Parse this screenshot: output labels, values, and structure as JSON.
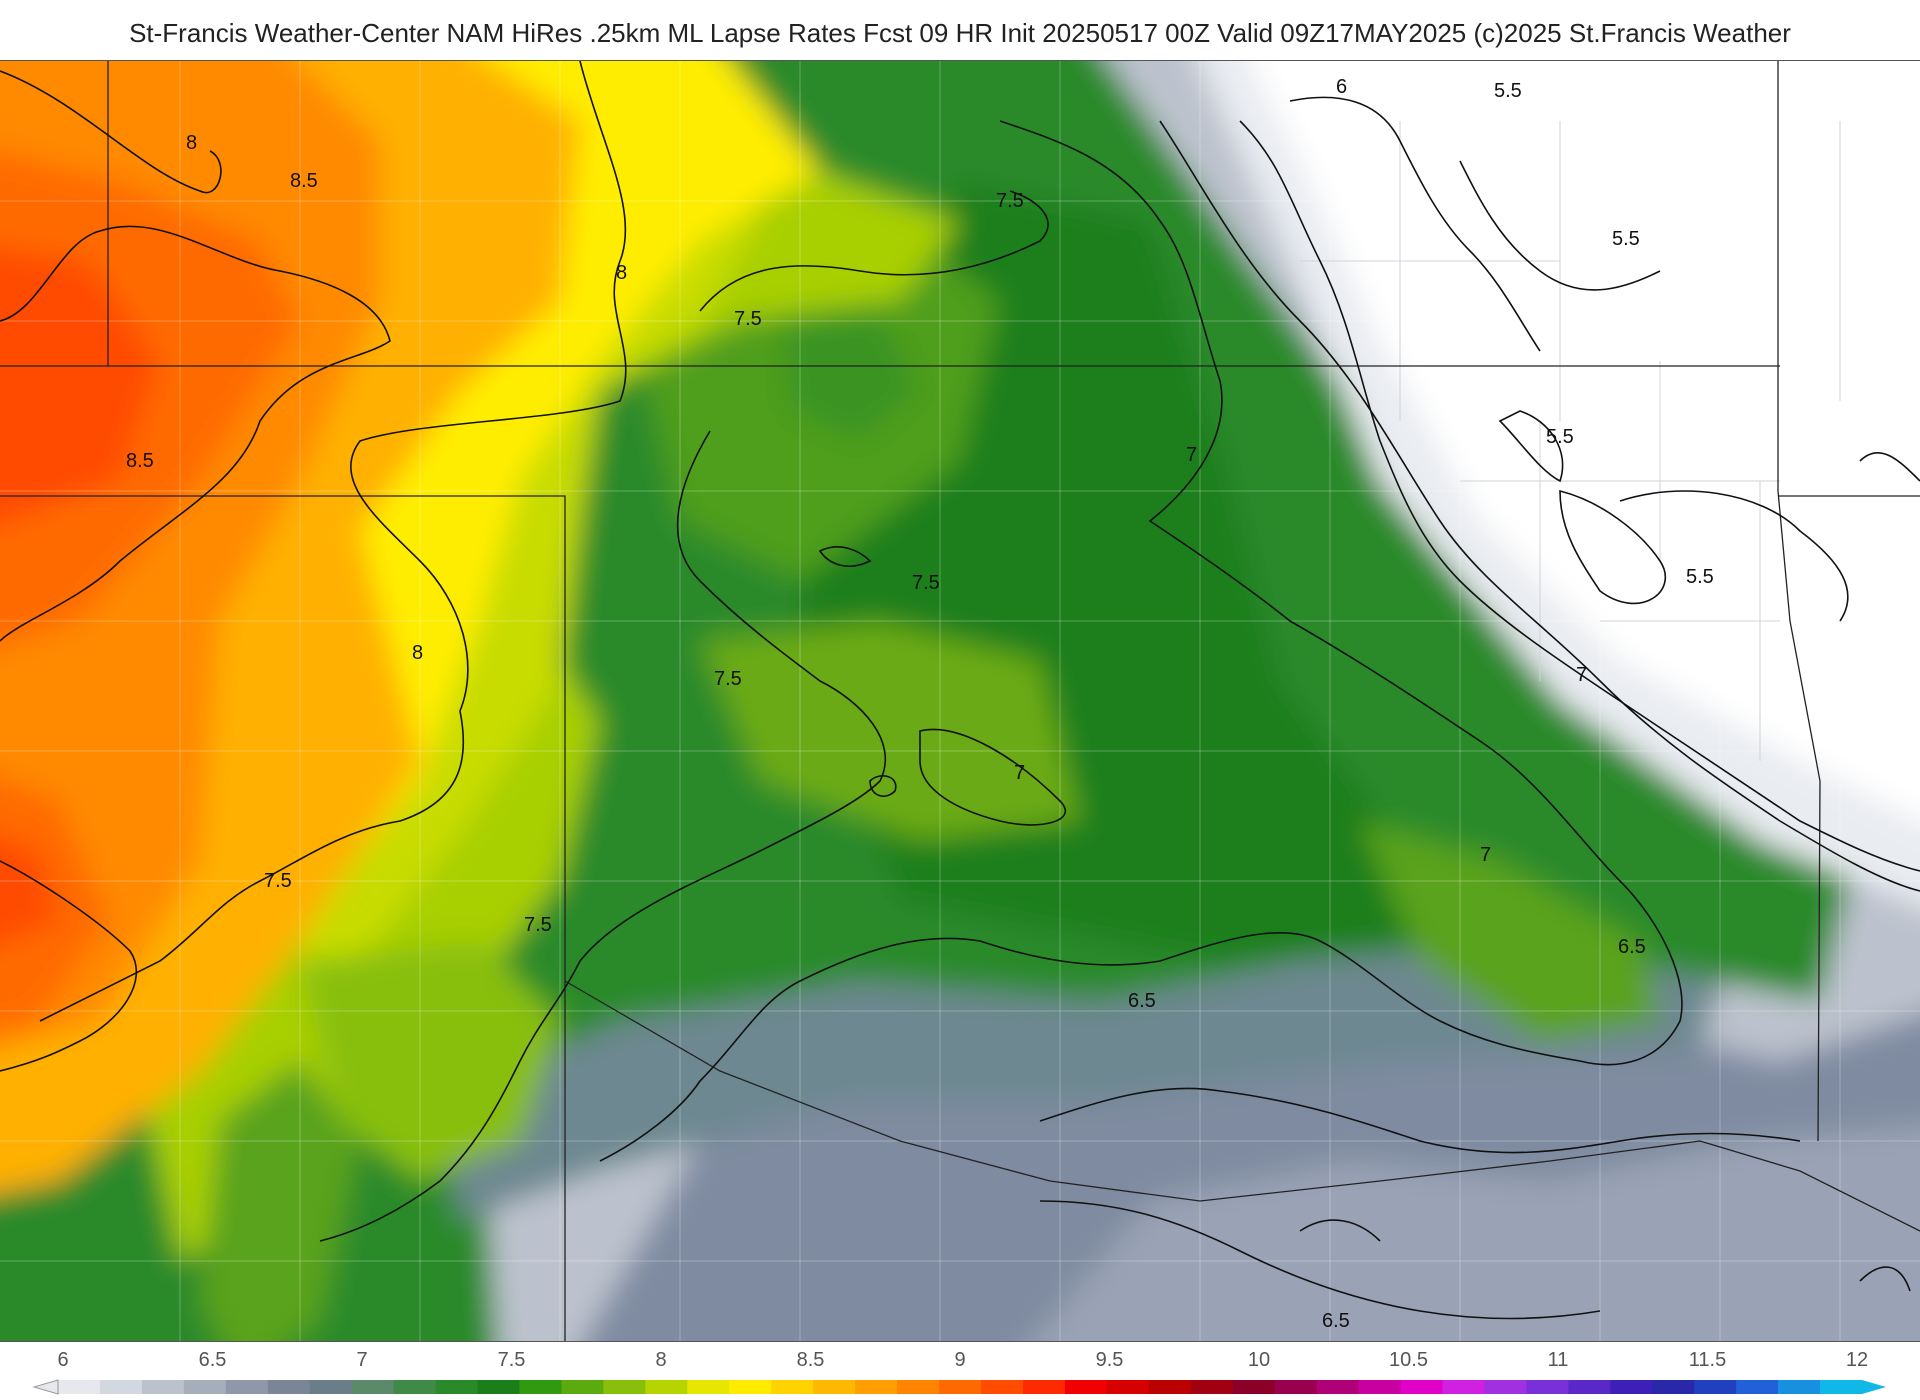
{
  "title": "St-Francis Weather-Center NAM HiRes .25km ML Lapse Rates  Fcst 09 HR Init 20250517 00Z  Valid 09Z17MAY2025    (c)2025 St.Francis Weather",
  "map": {
    "contour_labels": [
      "8",
      "8.5",
      "8",
      "7.5",
      "7.5",
      "8.5",
      "7",
      "7.5",
      "8",
      "7.5",
      "7",
      "7",
      "7.5",
      "7.5",
      "7",
      "6.5",
      "6.5",
      "6.5",
      "6",
      "5.5",
      "5.5",
      "5.5",
      "5.5"
    ]
  },
  "colorbar": {
    "ticks": [
      "6",
      "6.5",
      "7",
      "7.5",
      "8",
      "8.5",
      "9",
      "9.5",
      "10",
      "10.5",
      "11",
      "11.5",
      "12"
    ],
    "colors": [
      "#e6e8ed",
      "#d3d7df",
      "#bcc2cd",
      "#a6aebc",
      "#8f98aa",
      "#7a8598",
      "#6a7d88",
      "#5a8a6a",
      "#3f8a46",
      "#2a8a2a",
      "#1a7f1a",
      "#2f9a10",
      "#5aaa10",
      "#88bf0a",
      "#b5d400",
      "#e6e600",
      "#ffeb00",
      "#ffd200",
      "#ffb800",
      "#ff9e00",
      "#ff8400",
      "#ff6a00",
      "#ff4c00",
      "#ff2a00",
      "#f00000",
      "#d60000",
      "#bb0000",
      "#a00010",
      "#8a0028",
      "#9a0050",
      "#b00078",
      "#c800a0",
      "#e000c8",
      "#d020e0",
      "#a030e0",
      "#7a30d8",
      "#5a28c8",
      "#3c20b8",
      "#2828a8",
      "#2040c0",
      "#2060d8",
      "#1890e0",
      "#10b8e8"
    ]
  }
}
